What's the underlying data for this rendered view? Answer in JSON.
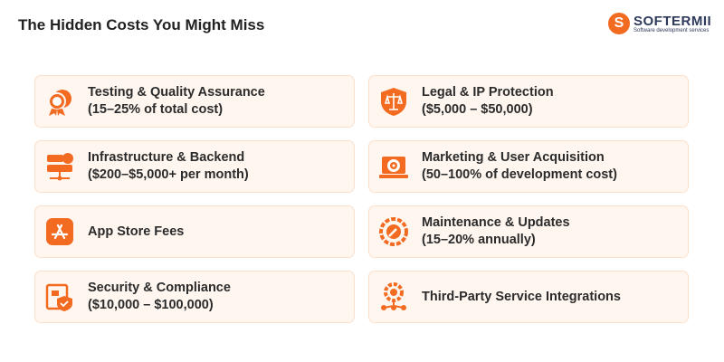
{
  "title": "The Hidden Costs You Might Miss",
  "logo": {
    "letter": "S",
    "name": "SOFTERMII",
    "tagline": "Software development services"
  },
  "accent": "#f26b21",
  "cards": [
    {
      "icon": "gear-badge-icon",
      "line1": "Testing & Quality Assurance",
      "line2": "(15–25% of total cost)"
    },
    {
      "icon": "scale-shield-icon",
      "line1": "Legal & IP Protection",
      "line2": "($5,000 – $50,000)"
    },
    {
      "icon": "server-icon",
      "line1": "Infrastructure & Backend",
      "line2": "($200–$5,000+ per month)"
    },
    {
      "icon": "target-laptop-icon",
      "line1": "Marketing & User Acquisition",
      "line2": "(50–100% of development cost)"
    },
    {
      "icon": "app-store-icon",
      "line1": "App Store Fees",
      "line2": ""
    },
    {
      "icon": "wrench-gear-icon",
      "line1": "Maintenance & Updates",
      "line2": "(15–20% annually)"
    },
    {
      "icon": "shield-document-icon",
      "line1": "Security & Compliance",
      "line2": "($10,000 – $100,000)"
    },
    {
      "icon": "integration-gear-icon",
      "line1": "Third-Party Service Integrations",
      "line2": ""
    }
  ]
}
